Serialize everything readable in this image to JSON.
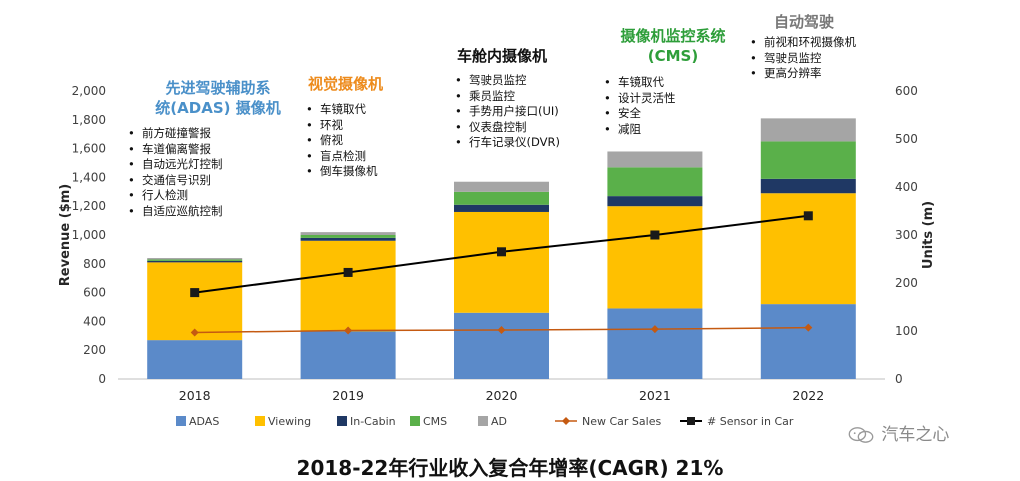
{
  "chart_data": {
    "type": "bar",
    "stacked": true,
    "categories": [
      "2018",
      "2019",
      "2020",
      "2021",
      "2022"
    ],
    "ylabel": "Revenue ($m)",
    "y2label": "Units (m)",
    "ylim": [
      0,
      2000
    ],
    "y2lim": [
      0,
      600
    ],
    "yticks": [
      "0",
      "200",
      "400",
      "600",
      "800",
      "1,000",
      "1,200",
      "1,400",
      "1,600",
      "1,800",
      "2,000"
    ],
    "y2ticks": [
      "0",
      "100",
      "200",
      "300",
      "400",
      "500",
      "600"
    ],
    "series": [
      {
        "name": "ADAS",
        "color": "#5b8ac9",
        "values": [
          270,
          330,
          460,
          490,
          520
        ]
      },
      {
        "name": "Viewing",
        "color": "#ffc000",
        "values": [
          540,
          630,
          700,
          710,
          770
        ]
      },
      {
        "name": "In-Cabin",
        "color": "#1f3864",
        "values": [
          10,
          20,
          50,
          70,
          100
        ]
      },
      {
        "name": "CMS",
        "color": "#5ab04a",
        "values": [
          10,
          20,
          90,
          200,
          260
        ]
      },
      {
        "name": "AD",
        "color": "#a5a5a5",
        "values": [
          10,
          20,
          70,
          110,
          160
        ]
      }
    ],
    "lines": [
      {
        "name": "New Car Sales",
        "color": "#c55a11",
        "marker": "diamond",
        "values": [
          97,
          101,
          102,
          104,
          107
        ]
      },
      {
        "name": "# Sensor in Car",
        "color": "#000000",
        "marker": "square",
        "values": [
          180,
          222,
          265,
          300,
          340
        ]
      }
    ],
    "legend_position": "bottom"
  },
  "annotations": [
    {
      "title": "先进驾驶辅助系\n统(ADAS) 摄像机",
      "color": "#4a90c9",
      "items": [
        "前方碰撞警报",
        "车道偏离警报",
        "自动远光灯控制",
        "交通信号识别",
        "行人检测",
        "自适应巡航控制"
      ]
    },
    {
      "title": "视觉摄像机",
      "color": "#ed8b1c",
      "items": [
        "车镜取代",
        "环视",
        "俯视",
        "盲点检测",
        "倒车摄像机"
      ]
    },
    {
      "title": "车舱内摄像机",
      "color": "#111111",
      "items": [
        "驾驶员监控",
        "乘员监控",
        "手势用户接口(UI)",
        "仪表盘控制",
        "行车记录仪(DVR)"
      ]
    },
    {
      "title": "摄像机监控系统\n(CMS)",
      "color": "#2e9e3a",
      "items": [
        "车镜取代",
        "设计灵活性",
        "安全",
        "减阻"
      ]
    },
    {
      "title": "自动驾驶",
      "color": "#777777",
      "items": [
        "前视和环视摄像机",
        "驾驶员监控",
        "更高分辨率"
      ]
    }
  ],
  "footer_title": "2018-22年行业收入复合年增率(CAGR) 21%",
  "watermark": "汽车之心"
}
